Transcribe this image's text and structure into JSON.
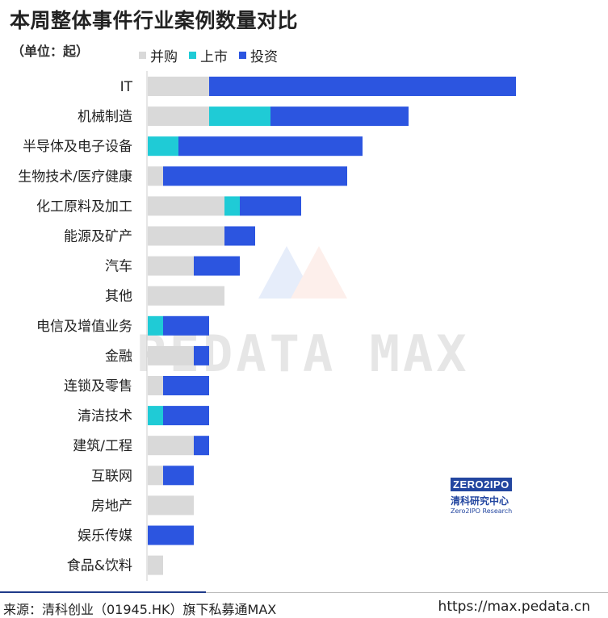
{
  "title": "本周整体事件行业案例数量对比",
  "unit_label": "（单位：起）",
  "legend": [
    {
      "label": "并购",
      "color": "#d9d9d9"
    },
    {
      "label": "上市",
      "color": "#1fcbd6"
    },
    {
      "label": "投资",
      "color": "#2c55e0"
    }
  ],
  "chart_data": {
    "type": "bar",
    "orientation": "horizontal",
    "stacked": true,
    "categories": [
      "IT",
      "机械制造",
      "半导体及电子设备",
      "生物技术/医疗健康",
      "化工原料及加工",
      "能源及矿产",
      "汽车",
      "其他",
      "电信及增值业务",
      "金融",
      "连锁及零售",
      "清洁技术",
      "建筑/工程",
      "互联网",
      "房地产",
      "娱乐传媒",
      "食品&饮料"
    ],
    "series": [
      {
        "name": "并购",
        "color": "#d9d9d9",
        "values": [
          4,
          4,
          0,
          1,
          5,
          5,
          3,
          5,
          0,
          3,
          1,
          0,
          3,
          1,
          3,
          0,
          1
        ]
      },
      {
        "name": "上市",
        "color": "#1fcbd6",
        "values": [
          0,
          4,
          2,
          0,
          1,
          0,
          0,
          0,
          1,
          0,
          0,
          1,
          0,
          0,
          0,
          0,
          0
        ]
      },
      {
        "name": "投资",
        "color": "#2c55e0",
        "values": [
          20,
          9,
          12,
          12,
          4,
          2,
          3,
          0,
          3,
          1,
          3,
          3,
          1,
          2,
          0,
          3,
          0
        ]
      }
    ],
    "xlim": [
      0,
      24
    ],
    "grid": false,
    "legend_position": "top-left"
  },
  "watermark": "PEDATA MAX",
  "logo": {
    "word": "ZERO2IPO",
    "cn": "清科研究中心",
    "en": "Zero2IPO Research"
  },
  "footer": {
    "source": "来源：清科创业（01945.HK）旗下私募通MAX",
    "url": "https://max.pedata.cn"
  }
}
